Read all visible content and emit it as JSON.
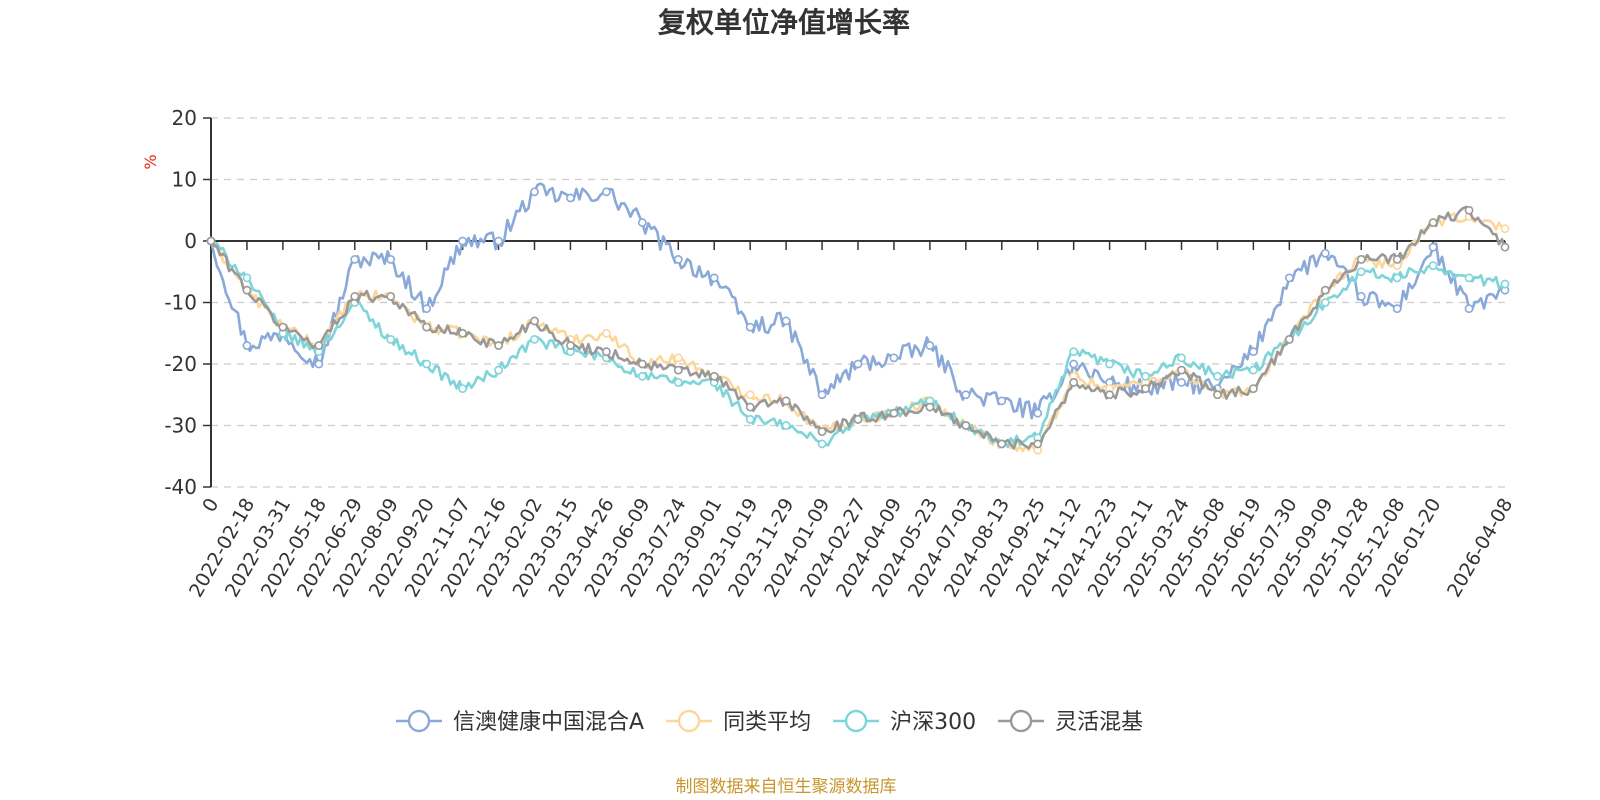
{
  "chart_data": {
    "type": "line",
    "title": "复权单位净值增长率",
    "ylabel": "%",
    "xlabel": "",
    "ylim": [
      -40,
      20
    ],
    "yticks": [
      20,
      10,
      0,
      -10,
      -20,
      -30,
      -40
    ],
    "grid": true,
    "legend_position": "bottom",
    "categories": [
      "0",
      "2022-02-18",
      "2022-03-31",
      "2022-05-18",
      "2022-06-29",
      "2022-08-09",
      "2022-09-20",
      "2022-11-07",
      "2022-12-16",
      "2023-02-02",
      "2023-03-15",
      "2023-04-26",
      "2023-06-09",
      "2023-07-24",
      "2023-09-01",
      "2023-10-19",
      "2023-11-29",
      "2024-01-09",
      "2024-02-27",
      "2024-04-09",
      "2024-05-23",
      "2024-07-03",
      "2024-08-13",
      "2024-09-25",
      "2024-11-12",
      "2024-12-23",
      "2025-02-11",
      "2025-03-24",
      "2025-05-08",
      "2025-06-19",
      "2025-07-30",
      "2025-09-09",
      "2025-10-28",
      "2025-12-08",
      "2026-01-20",
      "",
      "2026-04-08"
    ],
    "series": [
      {
        "name": "信澳健康中国混合A",
        "color": "#8aa9d9",
        "values": [
          0,
          -17,
          -15,
          -20,
          -3,
          -3,
          -11,
          0,
          0,
          8,
          7,
          8,
          3,
          -3,
          -6,
          -14,
          -13,
          -25,
          -20,
          -19,
          -17,
          -25,
          -26,
          -28,
          -20,
          -23,
          -24,
          -23,
          -24,
          -18,
          -6,
          -2,
          -9,
          -11,
          -1,
          -11,
          -8
        ]
      },
      {
        "name": "同类平均",
        "color": "#fbd79a",
        "values": [
          0,
          -8,
          -14,
          -17,
          -9,
          -9,
          -14,
          -15,
          -17,
          -13,
          -16,
          -15,
          -20,
          -19,
          -22,
          -25,
          -26,
          -31,
          -29,
          -28,
          -26,
          -30,
          -33,
          -34,
          -22,
          -24,
          -23,
          -21,
          -25,
          -24,
          -16,
          -8,
          -3,
          -4,
          3,
          4,
          2
        ]
      },
      {
        "name": "沪深300",
        "color": "#7ed4d8",
        "values": [
          0,
          -6,
          -15,
          -18,
          -10,
          -16,
          -20,
          -24,
          -21,
          -16,
          -18,
          -19,
          -22,
          -23,
          -23,
          -29,
          -30,
          -33,
          -29,
          -28,
          -26,
          -30,
          -33,
          -32,
          -18,
          -20,
          -22,
          -19,
          -22,
          -21,
          -16,
          -10,
          -5,
          -6,
          -4,
          -6,
          -7
        ]
      },
      {
        "name": "灵活混基",
        "color": "#999999",
        "values": [
          0,
          -8,
          -14,
          -17,
          -9,
          -9,
          -14,
          -15,
          -17,
          -13,
          -17,
          -18,
          -20,
          -21,
          -22,
          -27,
          -26,
          -31,
          -29,
          -28,
          -27,
          -30,
          -33,
          -33,
          -23,
          -25,
          -24,
          -21,
          -25,
          -24,
          -16,
          -8,
          -3,
          -3,
          3,
          5,
          -1
        ]
      }
    ]
  },
  "footer": "制图数据来自恒生聚源数据库"
}
